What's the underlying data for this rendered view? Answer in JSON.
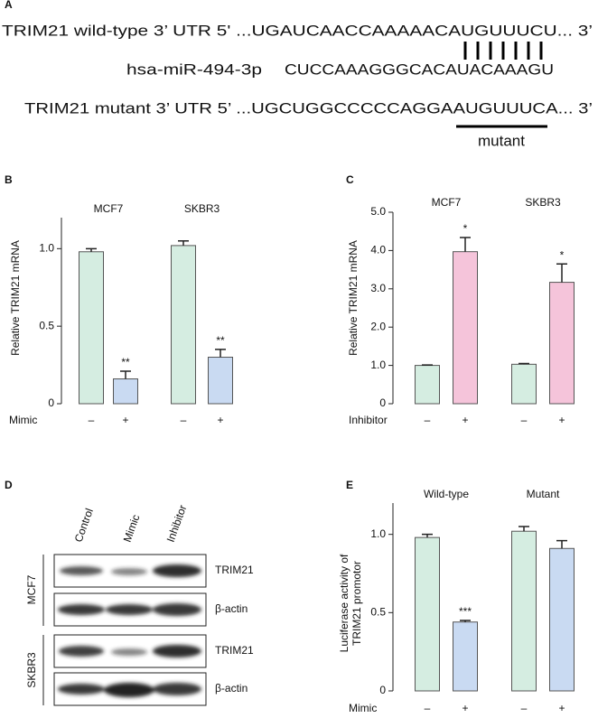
{
  "panel_a": {
    "label": "A",
    "wild_type": "TRIM21 wild-type 3’ UTR 5' ...UGAUCAACCAAAAACAUGUUUCU... 3’",
    "mirna_name": "hsa-miR-494-3p",
    "mirna_seq": "CUCCAAAGGGCACAUACAAAGU",
    "mutant": "TRIM21 mutant 3’ UTR 5’ ...UGCUGGCCCCCAGGAAUGUUUCA... 3’",
    "mutant_label": "mutant"
  },
  "chart_data": [
    {
      "type": "bar",
      "panel": "B",
      "ylabel": "Relative TRIM21 mRNA",
      "row_label": "Mimic",
      "groups": [
        "MCF7",
        "SKBR3"
      ],
      "categories": [
        "–",
        "+",
        "–",
        "+"
      ],
      "values": [
        0.98,
        0.16,
        1.02,
        0.3
      ],
      "errors": [
        0.02,
        0.05,
        0.03,
        0.05
      ],
      "significance": [
        null,
        "**",
        null,
        "**"
      ],
      "colors": [
        "#d5ede1",
        "#c9daf2",
        "#d5ede1",
        "#c9daf2"
      ],
      "ylim": [
        0,
        1.2
      ],
      "yticks": [
        0,
        0.5,
        {
          "value": 1,
          "label": "1.0"
        }
      ]
    },
    {
      "type": "bar",
      "panel": "C",
      "ylabel": "Relative TRIM21 mRNA",
      "row_label": "Inhibitor",
      "groups": [
        "MCF7",
        "SKBR3"
      ],
      "categories": [
        "–",
        "+",
        "–",
        "+"
      ],
      "values": [
        1.0,
        3.97,
        1.03,
        3.17
      ],
      "errors": [
        0.01,
        0.37,
        0.02,
        0.48
      ],
      "significance": [
        null,
        "*",
        null,
        "*"
      ],
      "colors": [
        "#d5ede1",
        "#f5c4da",
        "#d5ede1",
        "#f5c4da"
      ],
      "ylim": [
        0,
        5
      ],
      "yticks": [
        0,
        {
          "value": 1,
          "label": "1.0"
        },
        {
          "value": 2,
          "label": "2.0"
        },
        {
          "value": 3,
          "label": "3.0"
        },
        {
          "value": 4,
          "label": "4.0"
        },
        {
          "value": 5,
          "label": "5.0"
        }
      ]
    },
    {
      "type": "bar",
      "panel": "E",
      "ylabel": [
        "Luciferase activity of",
        "TRIM21 promotor"
      ],
      "row_label": "Mimic",
      "groups": [
        "Wild-type",
        "Mutant"
      ],
      "categories": [
        "–",
        "+",
        "–",
        "+"
      ],
      "values": [
        0.98,
        0.44,
        1.02,
        0.91
      ],
      "errors": [
        0.02,
        0.01,
        0.03,
        0.05
      ],
      "significance": [
        null,
        "***",
        null,
        null
      ],
      "colors": [
        "#d5ede1",
        "#c9daf2",
        "#d5ede1",
        "#c9daf2"
      ],
      "ylim": [
        0,
        1.2
      ],
      "yticks": [
        0,
        0.5,
        {
          "value": 1,
          "label": "1.0"
        }
      ]
    }
  ],
  "panel_d": {
    "label": "D",
    "columns": [
      "Control",
      "Mimic",
      "Inhibitor"
    ],
    "cell_lines": [
      "MCF7",
      "SKBR3"
    ],
    "rows": [
      "TRIM21",
      "β-actin",
      "TRIM21",
      "β-actin"
    ]
  }
}
